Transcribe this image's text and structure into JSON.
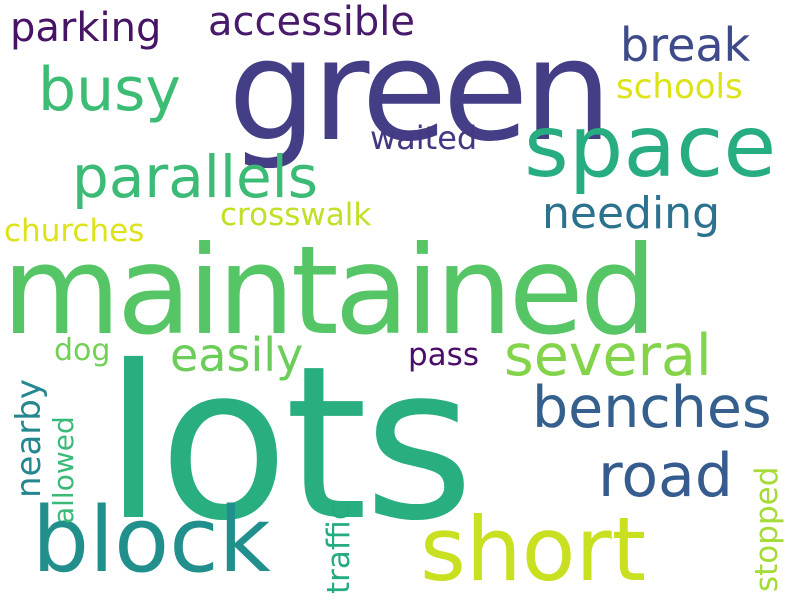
{
  "words": {
    "lots": {
      "text": "lots",
      "color": "#29af7f"
    },
    "maintained": {
      "text": "maintained",
      "color": "#56c566"
    },
    "green": {
      "text": "green",
      "color": "#433e85"
    },
    "space": {
      "text": "space",
      "color": "#27ad81"
    },
    "short": {
      "text": "short",
      "color": "#c8e020"
    },
    "block": {
      "text": "block",
      "color": "#21908d"
    },
    "parallels": {
      "text": "parallels",
      "color": "#3bbb75"
    },
    "benches": {
      "text": "benches",
      "color": "#355f8d"
    },
    "several": {
      "text": "several",
      "color": "#84d44b"
    },
    "busy": {
      "text": "busy",
      "color": "#3dbc74"
    },
    "road": {
      "text": "road",
      "color": "#365c8d"
    },
    "accessible": {
      "text": "accessible",
      "color": "#481a6c"
    },
    "parking": {
      "text": "parking",
      "color": "#471365"
    },
    "break": {
      "text": "break",
      "color": "#3e4a89"
    },
    "needing": {
      "text": "needing",
      "color": "#2c728e"
    },
    "easily": {
      "text": "easily",
      "color": "#6ccd5a"
    },
    "schools": {
      "text": "schools",
      "color": "#dde318"
    },
    "waited": {
      "text": "waited",
      "color": "#453781"
    },
    "crosswalk": {
      "text": "crosswalk",
      "color": "#c0df25"
    },
    "churches": {
      "text": "churches",
      "color": "#dde318"
    },
    "pass": {
      "text": "pass",
      "color": "#4b0c6b"
    },
    "dog": {
      "text": "dog",
      "color": "#73d056"
    },
    "nearby": {
      "text": "nearby",
      "color": "#24868e"
    },
    "allowed": {
      "text": "allowed",
      "color": "#3aba76"
    },
    "traffic": {
      "text": "traffic",
      "color": "#25ab82"
    },
    "stopped": {
      "text": "stopped",
      "color": "#a5db36"
    }
  }
}
